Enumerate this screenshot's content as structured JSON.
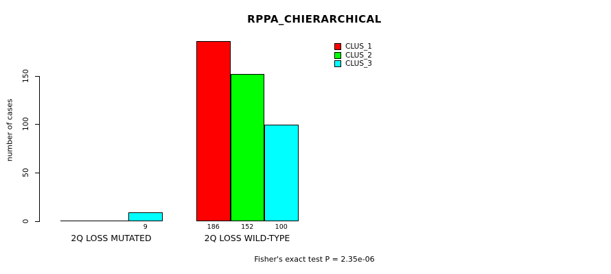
{
  "title": "RPPA_CHIERARCHICAL",
  "ylabel": "number of cases",
  "footnote": "Fisher's exact test P = 2.35e-06",
  "legend": {
    "items": [
      {
        "label": "CLUS_1",
        "color": "#ff0000"
      },
      {
        "label": "CLUS_2",
        "color": "#00ff00"
      },
      {
        "label": "CLUS_3",
        "color": "#00ffff"
      }
    ]
  },
  "chart_data": {
    "type": "bar",
    "title": "RPPA_CHIERARCHICAL",
    "ylabel": "number of cases",
    "xlabel": "",
    "categories": [
      "2Q LOSS MUTATED",
      "2Q LOSS WILD-TYPE"
    ],
    "series": [
      {
        "name": "CLUS_1",
        "color": "#ff0000",
        "values": [
          0,
          186
        ]
      },
      {
        "name": "CLUS_2",
        "color": "#00ff00",
        "values": [
          0,
          152
        ]
      },
      {
        "name": "CLUS_3",
        "color": "#00ffff",
        "values": [
          9,
          100
        ]
      }
    ],
    "bar_value_labels": [
      [
        "",
        "",
        "9"
      ],
      [
        "186",
        "152",
        "100"
      ]
    ],
    "yticks": [
      0,
      50,
      100,
      150
    ],
    "ylim": [
      0,
      150
    ],
    "grid": false,
    "legend_position": "top-right-inside",
    "annotation": "Fisher's exact test P = 2.35e-06"
  }
}
